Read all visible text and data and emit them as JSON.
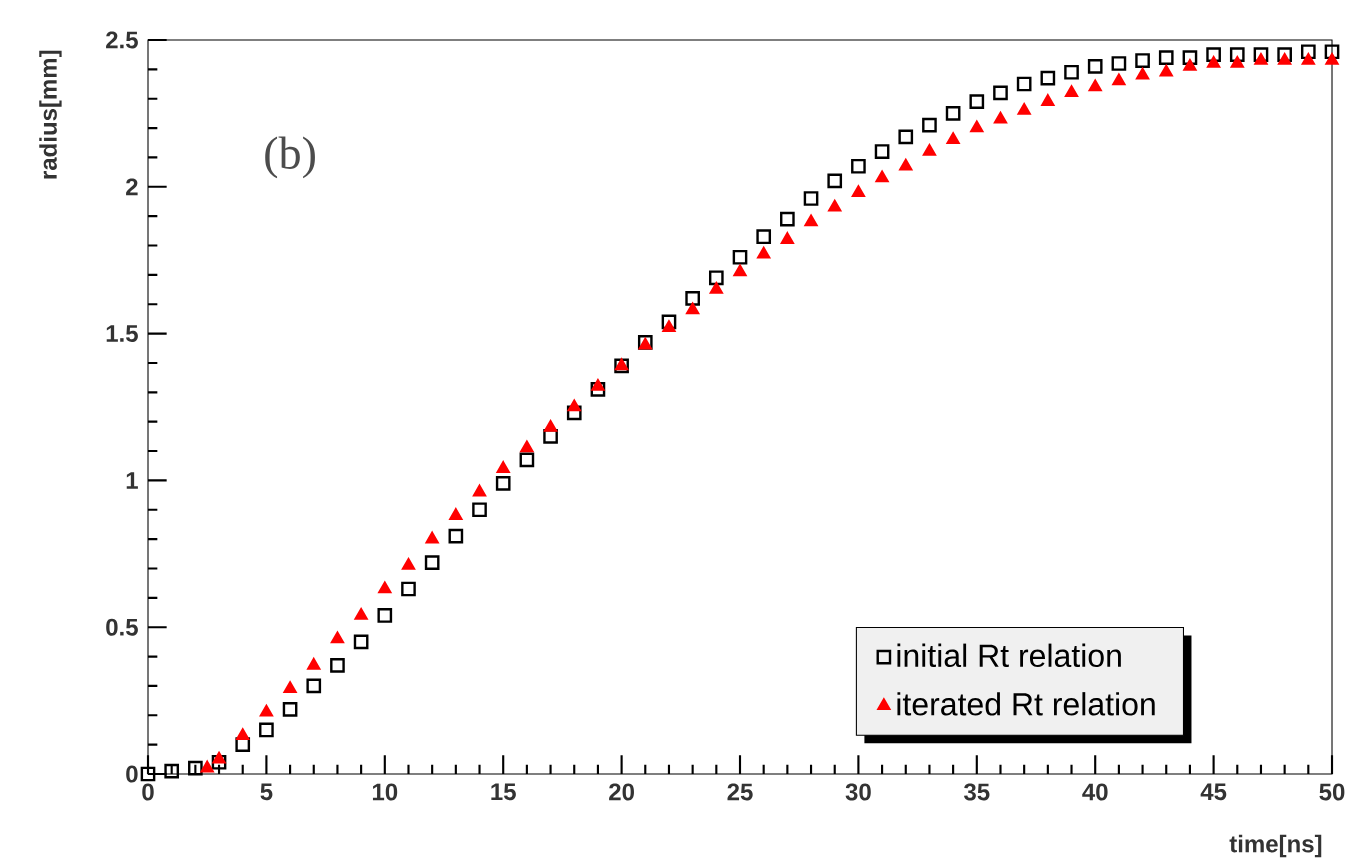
{
  "chart_data": {
    "type": "scatter",
    "xlabel": "time[ns]",
    "ylabel": "radius[mm]",
    "annotations": [
      "(b)"
    ],
    "xlim": [
      0,
      50
    ],
    "ylim": [
      0,
      2.5
    ],
    "xticks": [
      0,
      5,
      10,
      15,
      20,
      25,
      30,
      35,
      40,
      45,
      50
    ],
    "yticks": [
      0,
      0.5,
      1,
      1.5,
      2,
      2.5
    ],
    "grid": false,
    "legend": "bottom right",
    "series": [
      {
        "name": "initial Rt relation",
        "color": "#000000",
        "marker": "square",
        "x": [
          0,
          1,
          2,
          3,
          4,
          5,
          6,
          7,
          8,
          9,
          10,
          11,
          12,
          13,
          14,
          15,
          16,
          17,
          18,
          19,
          20,
          21,
          22,
          23,
          24,
          25,
          26,
          27,
          28,
          29,
          30,
          31,
          32,
          33,
          34,
          35,
          36,
          37,
          38,
          39,
          40,
          41,
          42,
          43,
          44,
          45,
          46,
          47,
          48,
          49,
          50
        ],
        "values": [
          0,
          0.01,
          0.02,
          0.04,
          0.1,
          0.15,
          0.22,
          0.3,
          0.37,
          0.45,
          0.54,
          0.63,
          0.72,
          0.81,
          0.9,
          0.99,
          1.07,
          1.15,
          1.23,
          1.31,
          1.39,
          1.47,
          1.54,
          1.62,
          1.69,
          1.76,
          1.83,
          1.89,
          1.96,
          2.02,
          2.07,
          2.12,
          2.17,
          2.21,
          2.25,
          2.29,
          2.32,
          2.35,
          2.37,
          2.39,
          2.41,
          2.42,
          2.43,
          2.44,
          2.44,
          2.45,
          2.45,
          2.45,
          2.45,
          2.46,
          2.46
        ]
      },
      {
        "name": "iterated Rt relation",
        "color": "#ff0000",
        "marker": "triangle",
        "x": [
          2.5,
          3,
          4,
          5,
          6,
          7,
          8,
          9,
          10,
          11,
          12,
          13,
          14,
          15,
          16,
          17,
          18,
          19,
          20,
          21,
          22,
          23,
          24,
          25,
          26,
          27,
          28,
          29,
          30,
          31,
          32,
          33,
          34,
          35,
          36,
          37,
          38,
          39,
          40,
          41,
          42,
          43,
          44,
          45,
          46,
          47,
          48,
          49,
          50
        ],
        "values": [
          0.02,
          0.05,
          0.13,
          0.21,
          0.29,
          0.37,
          0.46,
          0.54,
          0.63,
          0.71,
          0.8,
          0.88,
          0.96,
          1.04,
          1.11,
          1.18,
          1.25,
          1.32,
          1.39,
          1.46,
          1.52,
          1.58,
          1.65,
          1.71,
          1.77,
          1.82,
          1.88,
          1.93,
          1.98,
          2.03,
          2.07,
          2.12,
          2.16,
          2.2,
          2.23,
          2.26,
          2.29,
          2.32,
          2.34,
          2.36,
          2.38,
          2.39,
          2.41,
          2.42,
          2.42,
          2.43,
          2.43,
          2.43,
          2.43
        ]
      }
    ]
  }
}
